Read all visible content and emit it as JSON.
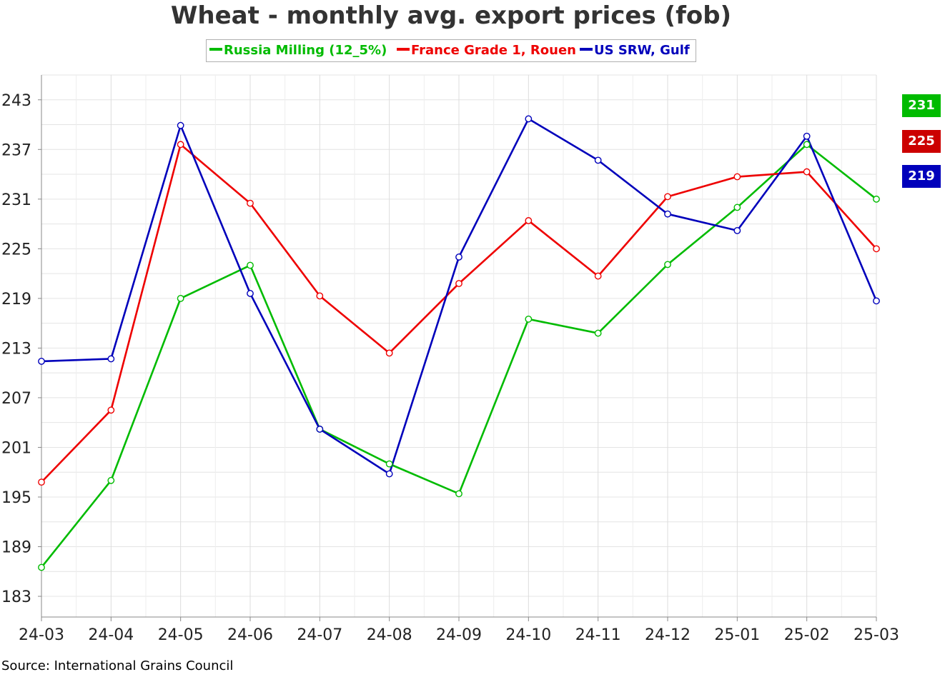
{
  "title": "Wheat - monthly avg. export prices (fob)",
  "source": "Source: International Grains Council",
  "colors": {
    "background": "#ffffff",
    "grid": "#dddddd",
    "axis": "#888888",
    "russia": "#00bb00",
    "france": "#ee0000",
    "us": "#0000bb"
  },
  "chart_data": {
    "type": "line",
    "title": "Wheat - monthly avg. export prices (fob)",
    "xlabel": "",
    "ylabel": "",
    "categories": [
      "24-03",
      "24-04",
      "24-05",
      "24-06",
      "24-07",
      "24-08",
      "24-09",
      "24-10",
      "24-11",
      "24-12",
      "25-01",
      "25-02",
      "25-03"
    ],
    "ylim": [
      180.5,
      246
    ],
    "yticks": [
      183,
      189,
      195,
      201,
      207,
      213,
      219,
      225,
      231,
      237,
      243
    ],
    "grid": true,
    "legend_position": "top-center",
    "series": [
      {
        "name": "Russia Milling (12_5%)",
        "color": "#00bb00",
        "values": [
          186.5,
          197,
          219,
          223,
          203.2,
          199,
          195.4,
          216.5,
          214.8,
          223.1,
          230,
          237.6,
          231
        ]
      },
      {
        "name": "France Grade 1, Rouen",
        "color": "#ee0000",
        "values": [
          196.8,
          205.5,
          237.6,
          230.5,
          219.3,
          212.4,
          220.8,
          228.4,
          221.7,
          231.3,
          233.7,
          234.3,
          225
        ]
      },
      {
        "name": "US SRW, Gulf",
        "color": "#0000bb",
        "values": [
          211.4,
          211.7,
          239.9,
          219.6,
          203.2,
          197.8,
          224,
          240.7,
          235.7,
          229.2,
          227.2,
          238.6,
          218.7
        ]
      }
    ],
    "last_values": [
      {
        "label": "231",
        "color": "#00bb00"
      },
      {
        "label": "225",
        "color": "#cc0000"
      },
      {
        "label": "219",
        "color": "#0000bb"
      }
    ]
  }
}
